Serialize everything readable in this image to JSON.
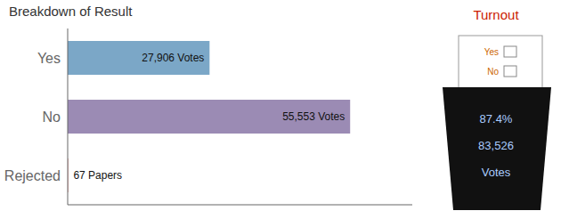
{
  "chart_data": {
    "type": "bar",
    "orientation": "horizontal",
    "title": "Breakdown of Result",
    "categories": [
      "Yes",
      "No",
      "Rejected"
    ],
    "values": [
      27906,
      55553,
      67
    ],
    "value_labels": [
      "27,906  Votes",
      "55,553  Votes",
      "67 Papers"
    ],
    "colors": [
      "#7ba7c7",
      "#9b8bb4",
      "#c0392b"
    ],
    "xlim": [
      0,
      67774.66
    ],
    "data_labels": true,
    "tick_labels": "y",
    "grid": false,
    "annotations": [
      {
        "text": "Turnout",
        "color": "#cc2200"
      },
      {
        "text": "Yes",
        "color": "#cc6600"
      },
      {
        "text": "No",
        "color": "#cc6600"
      },
      {
        "text": "87.4%",
        "color": "#aaccff"
      },
      {
        "text": "83,526",
        "color": "#aaccff"
      },
      {
        "text": "Votes",
        "color": "#aaccff"
      }
    ]
  }
}
